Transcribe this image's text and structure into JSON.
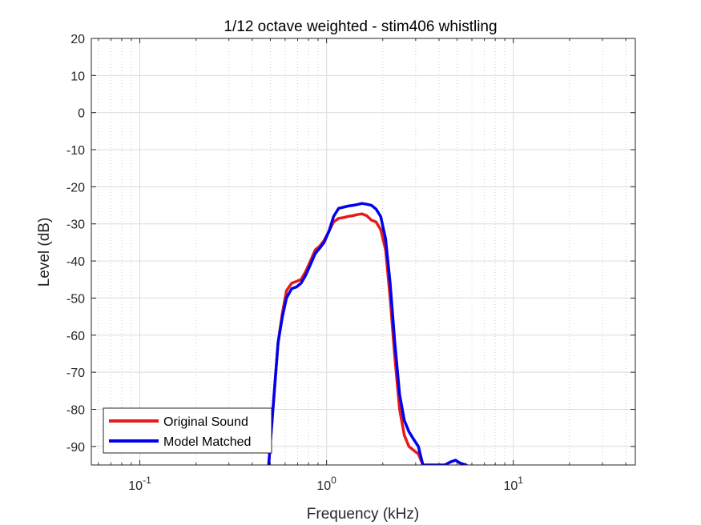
{
  "chart_data": {
    "type": "line",
    "title": "1/12 octave weighted - stim406 whistling",
    "xlabel": "Frequency (kHz)",
    "ylabel": "Level (dB)",
    "xscale": "log",
    "xlim": [
      0.055,
      45
    ],
    "ylim": [
      -95,
      20
    ],
    "y_ticks": [
      20,
      10,
      0,
      -10,
      -20,
      -30,
      -40,
      -50,
      -60,
      -70,
      -80,
      -90
    ],
    "x_ticks": [
      {
        "base": "10",
        "exp": "-1"
      },
      {
        "base": "10",
        "exp": "0"
      },
      {
        "base": "10",
        "exp": "1"
      }
    ],
    "grid": true,
    "legend_position": "bottom-left",
    "series": [
      {
        "name": "Original Sound",
        "color": "#e41a1c",
        "x": [
          0.49,
          0.52,
          0.55,
          0.58,
          0.61,
          0.65,
          0.69,
          0.73,
          0.77,
          0.82,
          0.87,
          0.92,
          0.97,
          1.03,
          1.09,
          1.16,
          1.23,
          1.3,
          1.38,
          1.46,
          1.55,
          1.64,
          1.74,
          1.84,
          1.95,
          2.07,
          2.19,
          2.32,
          2.46,
          2.61,
          2.76,
          2.92,
          3.1,
          3.28
        ],
        "y": [
          -95,
          -78,
          -62,
          -54,
          -48,
          -46,
          -45.5,
          -45,
          -43,
          -40,
          -37,
          -36,
          -34.5,
          -32,
          -29.5,
          -28.5,
          -28.3,
          -28,
          -27.8,
          -27.5,
          -27.3,
          -27.8,
          -29,
          -29.5,
          -31.5,
          -37,
          -50,
          -66,
          -80,
          -87,
          -90,
          -91,
          -92,
          -95
        ]
      },
      {
        "name": "Model Matched",
        "color": "#0000ee",
        "x": [
          0.49,
          0.52,
          0.55,
          0.58,
          0.61,
          0.65,
          0.69,
          0.73,
          0.77,
          0.82,
          0.87,
          0.92,
          0.97,
          1.03,
          1.09,
          1.16,
          1.23,
          1.3,
          1.38,
          1.46,
          1.55,
          1.64,
          1.74,
          1.84,
          1.95,
          2.07,
          2.19,
          2.32,
          2.46,
          2.61,
          2.76,
          2.92,
          3.1,
          3.28,
          4.3,
          4.6,
          4.9,
          5.2,
          5.6
        ],
        "y": [
          -95,
          -78,
          -62,
          -55,
          -50,
          -47.5,
          -47,
          -46,
          -44,
          -41,
          -38,
          -36.5,
          -35,
          -32,
          -28,
          -25.8,
          -25.5,
          -25.2,
          -25,
          -24.8,
          -24.5,
          -24.7,
          -25,
          -26,
          -28,
          -34,
          -46,
          -62,
          -76,
          -83,
          -86,
          -88,
          -90,
          -95,
          -95,
          -94.2,
          -93.7,
          -94.5,
          -95
        ]
      }
    ]
  }
}
